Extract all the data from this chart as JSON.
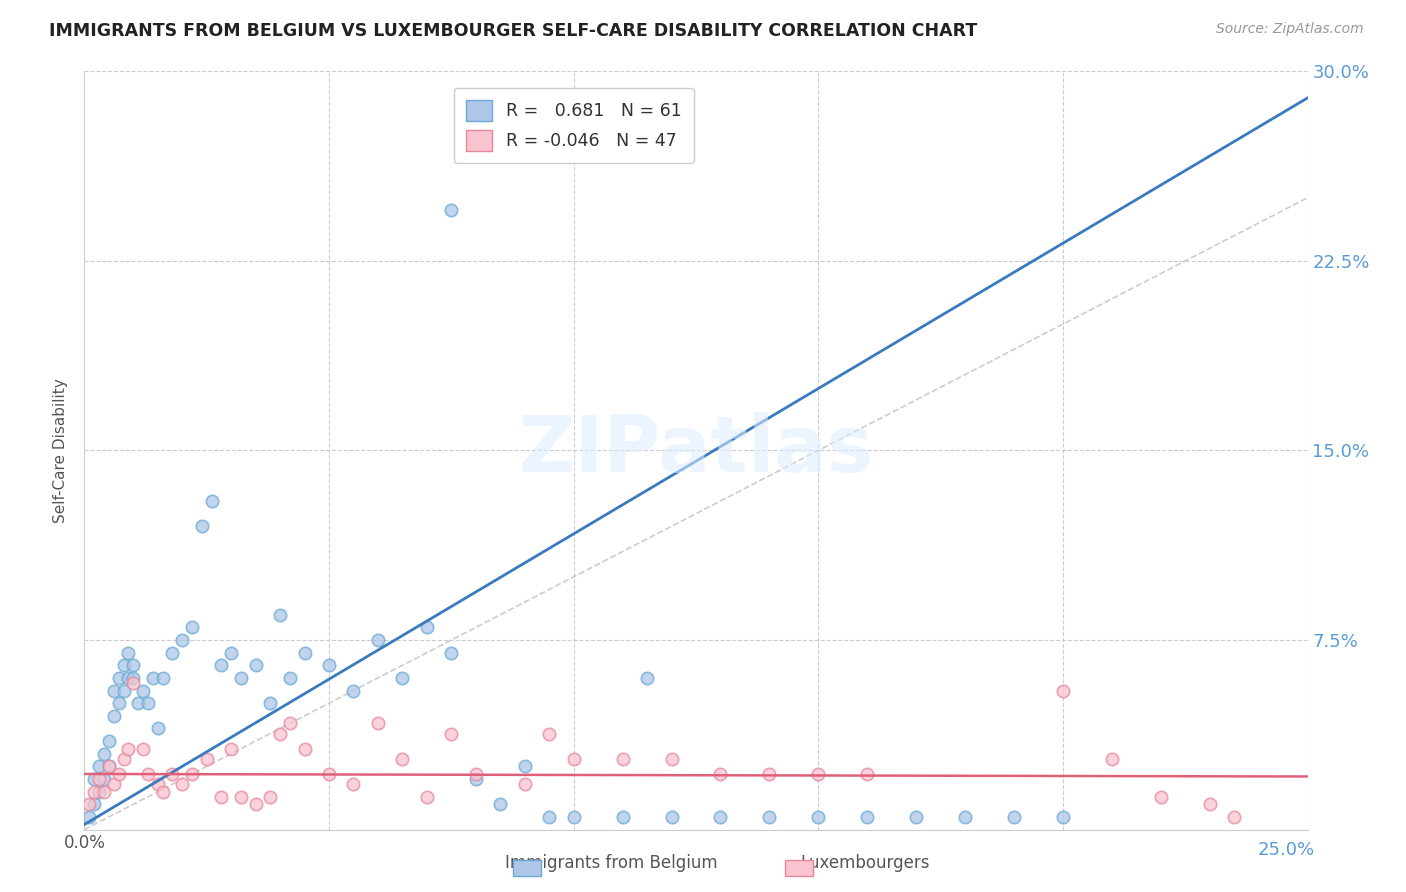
{
  "title": "IMMIGRANTS FROM BELGIUM VS LUXEMBOURGER SELF-CARE DISABILITY CORRELATION CHART",
  "source": "Source: ZipAtlas.com",
  "ylabel": "Self-Care Disability",
  "xlim": [
    0.0,
    0.25
  ],
  "ylim": [
    0.0,
    0.3
  ],
  "background_color": "#ffffff",
  "grid_color": "#cccccc",
  "watermark": "ZIPatlas",
  "series1_color": "#aec6e8",
  "series1_edge": "#6aaad4",
  "series2_color": "#f9c4d0",
  "series2_edge": "#e8879a",
  "line1_color": "#3a7abf",
  "line2_color": "#e0607a",
  "diag_line_color": "#c0c0c0",
  "R1": 0.681,
  "N1": 61,
  "R2": -0.046,
  "N2": 47,
  "line1_slope": 1.15,
  "line1_intercept": 0.002,
  "line2_slope": -0.004,
  "line2_intercept": 0.022,
  "scatter1_x": [
    0.001,
    0.002,
    0.002,
    0.003,
    0.003,
    0.004,
    0.004,
    0.005,
    0.005,
    0.006,
    0.006,
    0.007,
    0.007,
    0.008,
    0.008,
    0.009,
    0.009,
    0.01,
    0.01,
    0.011,
    0.012,
    0.013,
    0.014,
    0.015,
    0.016,
    0.018,
    0.02,
    0.022,
    0.024,
    0.026,
    0.028,
    0.03,
    0.032,
    0.035,
    0.038,
    0.04,
    0.042,
    0.045,
    0.05,
    0.055,
    0.06,
    0.065,
    0.07,
    0.075,
    0.08,
    0.085,
    0.09,
    0.095,
    0.1,
    0.11,
    0.115,
    0.12,
    0.13,
    0.14,
    0.15,
    0.16,
    0.17,
    0.18,
    0.19,
    0.075,
    0.2
  ],
  "scatter1_y": [
    0.005,
    0.01,
    0.02,
    0.015,
    0.025,
    0.02,
    0.03,
    0.025,
    0.035,
    0.045,
    0.055,
    0.06,
    0.05,
    0.065,
    0.055,
    0.07,
    0.06,
    0.065,
    0.06,
    0.05,
    0.055,
    0.05,
    0.06,
    0.04,
    0.06,
    0.07,
    0.075,
    0.08,
    0.12,
    0.13,
    0.065,
    0.07,
    0.06,
    0.065,
    0.05,
    0.085,
    0.06,
    0.07,
    0.065,
    0.055,
    0.075,
    0.06,
    0.08,
    0.07,
    0.02,
    0.01,
    0.025,
    0.005,
    0.005,
    0.005,
    0.06,
    0.005,
    0.005,
    0.005,
    0.005,
    0.005,
    0.005,
    0.005,
    0.005,
    0.245,
    0.005
  ],
  "scatter2_x": [
    0.001,
    0.002,
    0.003,
    0.004,
    0.005,
    0.006,
    0.007,
    0.008,
    0.009,
    0.01,
    0.012,
    0.013,
    0.015,
    0.016,
    0.018,
    0.02,
    0.022,
    0.025,
    0.028,
    0.03,
    0.032,
    0.035,
    0.038,
    0.04,
    0.042,
    0.045,
    0.05,
    0.055,
    0.06,
    0.065,
    0.07,
    0.075,
    0.08,
    0.09,
    0.095,
    0.1,
    0.11,
    0.12,
    0.13,
    0.14,
    0.15,
    0.16,
    0.2,
    0.21,
    0.22,
    0.23,
    0.235
  ],
  "scatter2_y": [
    0.01,
    0.015,
    0.02,
    0.015,
    0.025,
    0.018,
    0.022,
    0.028,
    0.032,
    0.058,
    0.032,
    0.022,
    0.018,
    0.015,
    0.022,
    0.018,
    0.022,
    0.028,
    0.013,
    0.032,
    0.013,
    0.01,
    0.013,
    0.038,
    0.042,
    0.032,
    0.022,
    0.018,
    0.042,
    0.028,
    0.013,
    0.038,
    0.022,
    0.018,
    0.038,
    0.028,
    0.028,
    0.028,
    0.022,
    0.022,
    0.022,
    0.022,
    0.055,
    0.028,
    0.013,
    0.01,
    0.005
  ]
}
